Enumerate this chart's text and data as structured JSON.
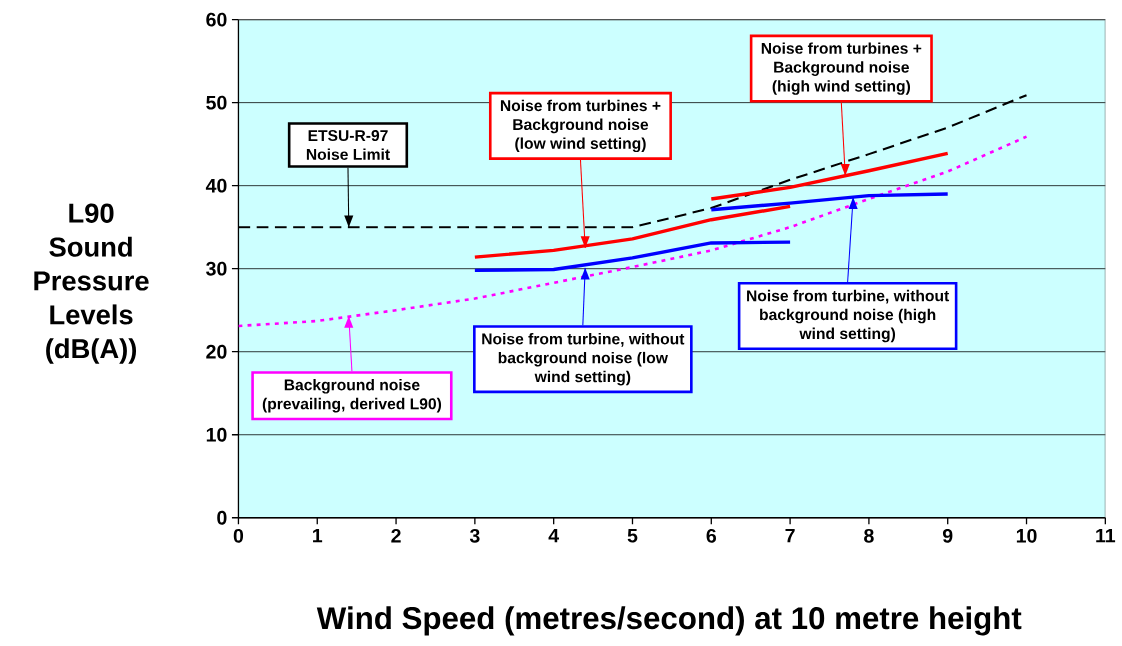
{
  "chart_data": {
    "type": "line",
    "xlabel": "Wind Speed (metres/second) at 10 metre height",
    "ylabel": "L90 Sound Pressure Levels (dB(A))",
    "xlim": [
      0,
      11
    ],
    "ylim": [
      0,
      60
    ],
    "xticks": [
      0,
      1,
      2,
      3,
      4,
      5,
      6,
      7,
      8,
      9,
      10,
      11
    ],
    "yticks": [
      0,
      10,
      20,
      30,
      40,
      50,
      60
    ],
    "grid": "y",
    "series": [
      {
        "color": "#000000",
        "line_style": "dashed",
        "x": [
          0,
          1,
          2,
          3,
          4,
          5,
          6,
          7,
          8,
          9,
          10
        ],
        "values": [
          35,
          35,
          35,
          35,
          35,
          35,
          37.3,
          40.7,
          43.8,
          47.0,
          50.9
        ]
      },
      {
        "color": "#ff00ff",
        "line_style": "dotted",
        "x": [
          0,
          1,
          2,
          3,
          4,
          5,
          6,
          7,
          8,
          9,
          10
        ],
        "values": [
          23.1,
          23.7,
          25.0,
          26.4,
          28.3,
          30.2,
          32.2,
          35.0,
          38.4,
          41.7,
          45.9
        ]
      },
      {
        "color": "#ff0000",
        "line_style": "solid",
        "x": [
          3,
          4,
          5,
          6,
          7
        ],
        "values": [
          31.4,
          32.2,
          33.6,
          35.9,
          37.5
        ]
      },
      {
        "color": "#0000ff",
        "line_style": "solid",
        "x": [
          3,
          4,
          5,
          6,
          7
        ],
        "values": [
          29.8,
          29.9,
          31.3,
          33.1,
          33.2
        ]
      },
      {
        "color": "#ff0000",
        "line_style": "solid",
        "x": [
          6,
          7,
          8,
          9
        ],
        "values": [
          38.4,
          39.8,
          41.8,
          43.9
        ]
      },
      {
        "color": "#0000ff",
        "line_style": "solid",
        "x": [
          6,
          7,
          8,
          9
        ],
        "values": [
          37.1,
          37.9,
          38.8,
          39.0
        ]
      }
    ],
    "annotations": [
      {
        "text": "ETSU-R-97 Noise Limit",
        "x": 1.4,
        "y": 35
      },
      {
        "text": "Background noise (prevailing, derived L90)",
        "x": 1.4,
        "y": 24.3
      },
      {
        "text": "Noise from turbines + Background noise (low wind setting)",
        "x": 4.4,
        "y": 32.5
      },
      {
        "text": "Noise from turbine, without background noise (low wind setting)",
        "x": 4.4,
        "y": 30.1
      },
      {
        "text": "Noise from turbines + Background noise (high wind setting)",
        "x": 7.7,
        "y": 41.2
      },
      {
        "text": "Noise from turbine, without background noise (high wind setting)",
        "x": 7.8,
        "y": 38.6
      }
    ]
  }
}
